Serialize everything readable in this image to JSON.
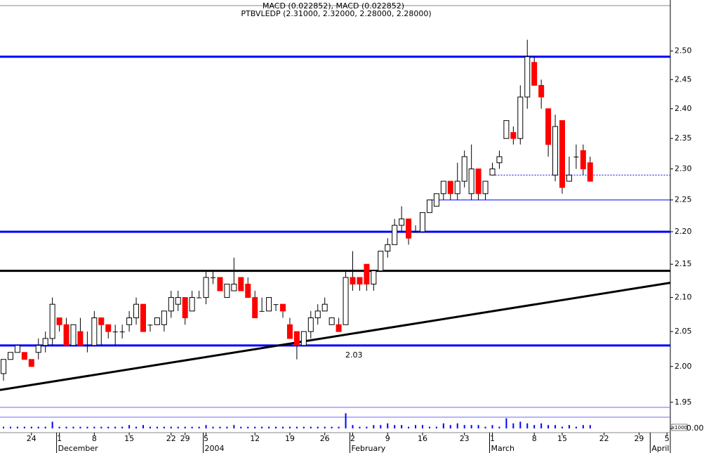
{
  "chart_data": {
    "type": "candlestick",
    "title": "PTBVLEDP (2.31000, 2.32000, 2.28000, 2.28000)",
    "subtitle": "MACD (0.022852), MACD (0.022852)",
    "log_scale": true,
    "ylim": [
      1.943,
      2.579
    ],
    "yticks": [
      1.95,
      {
        "value": 2.0,
        "label": "2.00"
      },
      2.05,
      {
        "value": 2.1,
        "label": "2.10"
      },
      2.15,
      {
        "value": 2.2,
        "label": "2.20"
      },
      2.25,
      {
        "value": 2.3,
        "label": "2.30"
      },
      2.35,
      {
        "value": 2.4,
        "label": "2.40"
      },
      2.45,
      {
        "value": 2.5,
        "label": "2.50"
      }
    ],
    "up_color": "#ffffff",
    "down_color": "#ff0000",
    "categories": [
      null,
      null,
      null,
      null,
      "24",
      null,
      null,
      null,
      "1",
      null,
      null,
      null,
      null,
      "8",
      null,
      null,
      null,
      null,
      "15",
      null,
      null,
      null,
      null,
      null,
      "22",
      null,
      "29",
      null,
      null,
      "5",
      null,
      null,
      null,
      null,
      null,
      null,
      "12",
      null,
      null,
      null,
      null,
      "19",
      null,
      null,
      null,
      null,
      "26",
      null,
      null,
      null,
      "2",
      null,
      null,
      null,
      null,
      "9",
      null,
      null,
      null,
      null,
      "16",
      null,
      null,
      null,
      null,
      null,
      "23",
      null,
      null,
      null,
      "1",
      null,
      null,
      null,
      null,
      null,
      "8",
      null,
      null,
      null,
      "15",
      null,
      null,
      null,
      null,
      null,
      "22",
      null,
      null,
      null,
      null,
      "29",
      null,
      null,
      null,
      "5"
    ],
    "months": [
      null,
      null,
      null,
      null,
      null,
      null,
      null,
      null,
      "December",
      null,
      null,
      null,
      null,
      null,
      null,
      null,
      null,
      null,
      null,
      null,
      null,
      null,
      null,
      null,
      null,
      null,
      null,
      null,
      null,
      "2004",
      null,
      null,
      null,
      null,
      null,
      null,
      null,
      null,
      null,
      null,
      null,
      null,
      null,
      null,
      null,
      null,
      null,
      null,
      null,
      null,
      "February",
      null,
      null,
      null,
      null,
      null,
      null,
      null,
      null,
      null,
      null,
      null,
      null,
      null,
      null,
      null,
      null,
      null,
      null,
      null,
      "March",
      null,
      null,
      null,
      null,
      null,
      null,
      null,
      null,
      null,
      null,
      null,
      null,
      null,
      null,
      null,
      null,
      null,
      null,
      null,
      null,
      null,
      null,
      "April",
      null,
      null
    ],
    "open": [
      1.99,
      2.01,
      2.02,
      2.02,
      2.01,
      2.02,
      2.03,
      2.04,
      2.07,
      2.06,
      2.03,
      2.05,
      2.03,
      2.03,
      2.07,
      2.06,
      2.05,
      2.05,
      2.06,
      2.07,
      2.09,
      2.06,
      2.06,
      2.06,
      2.08,
      2.09,
      2.1,
      2.08,
      2.1,
      2.1,
      2.13,
      2.13,
      2.1,
      2.11,
      2.13,
      2.12,
      2.1,
      2.08,
      2.08,
      2.09,
      2.09,
      2.06,
      2.05,
      2.03,
      2.05,
      2.07,
      2.08,
      2.06,
      2.06,
      2.06,
      2.13,
      2.13,
      2.15,
      2.12,
      2.14,
      2.17,
      2.18,
      2.21,
      2.22,
      2.2,
      2.2,
      2.23,
      2.24,
      2.26,
      2.28,
      2.26,
      2.28,
      2.26,
      2.3,
      2.26,
      2.29,
      2.31,
      2.35,
      2.36,
      2.35,
      2.42,
      2.48,
      2.44,
      2.4,
      2.29,
      2.38,
      2.28,
      2.32,
      2.33,
      2.31,
      null,
      null,
      null,
      null,
      null,
      null,
      null,
      null,
      null,
      null,
      null
    ],
    "high": [
      2.01,
      2.02,
      2.03,
      2.02,
      2.01,
      2.04,
      2.05,
      2.1,
      2.07,
      2.07,
      2.06,
      2.07,
      2.05,
      2.08,
      2.07,
      2.06,
      2.06,
      2.06,
      2.08,
      2.1,
      2.09,
      2.06,
      2.07,
      2.08,
      2.11,
      2.11,
      2.1,
      2.11,
      2.11,
      2.14,
      2.14,
      2.13,
      2.12,
      2.16,
      2.13,
      2.13,
      2.11,
      2.1,
      2.1,
      2.09,
      2.09,
      2.07,
      2.05,
      2.05,
      2.08,
      2.09,
      2.1,
      2.07,
      2.07,
      2.14,
      2.17,
      2.13,
      2.15,
      2.14,
      2.17,
      2.19,
      2.22,
      2.24,
      2.22,
      2.21,
      2.23,
      2.25,
      2.26,
      2.28,
      2.28,
      2.31,
      2.33,
      2.34,
      2.3,
      2.28,
      2.31,
      2.33,
      2.38,
      2.37,
      2.44,
      2.52,
      2.49,
      2.45,
      2.4,
      2.39,
      2.38,
      2.32,
      2.34,
      2.34,
      2.32,
      null,
      null,
      null,
      null,
      null,
      null,
      null,
      null,
      null,
      null,
      null
    ],
    "low": [
      1.98,
      2.01,
      2.02,
      2.01,
      2.0,
      2.01,
      2.02,
      2.03,
      2.05,
      2.03,
      2.03,
      2.03,
      2.02,
      2.03,
      2.03,
      2.04,
      2.03,
      2.04,
      2.05,
      2.06,
      2.05,
      2.05,
      2.06,
      2.05,
      2.07,
      2.08,
      2.06,
      2.08,
      2.1,
      2.09,
      2.12,
      2.11,
      2.1,
      2.11,
      2.11,
      2.1,
      2.07,
      2.08,
      2.08,
      2.08,
      2.07,
      2.04,
      2.01,
      2.03,
      2.04,
      2.06,
      2.08,
      2.06,
      2.05,
      2.06,
      2.11,
      2.11,
      2.11,
      2.11,
      2.14,
      2.16,
      2.18,
      2.2,
      2.18,
      2.2,
      2.2,
      2.23,
      2.24,
      2.25,
      2.25,
      2.25,
      2.27,
      2.25,
      2.25,
      2.25,
      2.29,
      2.3,
      2.35,
      2.34,
      2.34,
      2.4,
      2.44,
      2.4,
      2.32,
      2.28,
      2.26,
      2.28,
      2.3,
      2.29,
      2.28,
      null,
      null,
      null,
      null,
      null,
      null,
      null,
      null,
      null,
      null,
      null
    ],
    "close": [
      2.01,
      2.02,
      2.03,
      2.01,
      2.0,
      2.03,
      2.04,
      2.09,
      2.06,
      2.03,
      2.06,
      2.03,
      2.03,
      2.07,
      2.06,
      2.05,
      2.05,
      2.05,
      2.07,
      2.09,
      2.05,
      2.06,
      2.07,
      2.08,
      2.1,
      2.1,
      2.07,
      2.1,
      2.1,
      2.13,
      2.13,
      2.11,
      2.12,
      2.12,
      2.11,
      2.1,
      2.07,
      2.08,
      2.1,
      2.09,
      2.08,
      2.04,
      2.03,
      2.05,
      2.07,
      2.08,
      2.09,
      2.07,
      2.05,
      2.13,
      2.12,
      2.12,
      2.12,
      2.14,
      2.17,
      2.18,
      2.21,
      2.22,
      2.19,
      2.2,
      2.23,
      2.25,
      2.26,
      2.28,
      2.26,
      2.28,
      2.32,
      2.3,
      2.26,
      2.28,
      2.3,
      2.32,
      2.38,
      2.35,
      2.42,
      2.49,
      2.44,
      2.42,
      2.34,
      2.37,
      2.27,
      2.29,
      2.32,
      2.3,
      2.28,
      null,
      null,
      null,
      null,
      null,
      null,
      null,
      null,
      null,
      null,
      null
    ],
    "volume": [
      1,
      1,
      1,
      1,
      1,
      1,
      1,
      4,
      1,
      1,
      1,
      1,
      1,
      1,
      1,
      1,
      1,
      1,
      2,
      1,
      2,
      1,
      1,
      1,
      1,
      1,
      1,
      1,
      1,
      2,
      1,
      1,
      1,
      2,
      1,
      1,
      1,
      1,
      1,
      1,
      1,
      1,
      1,
      1,
      1,
      1,
      1,
      1,
      1,
      9,
      2,
      1,
      1,
      2,
      2,
      3,
      2,
      2,
      1,
      2,
      2,
      1,
      1,
      3,
      2,
      3,
      2,
      2,
      2,
      1,
      2,
      1,
      6,
      3,
      4,
      3,
      2,
      3,
      2,
      2,
      1,
      2,
      1,
      2,
      2,
      null,
      null,
      null,
      null,
      null,
      null,
      null,
      null,
      null,
      null,
      null
    ],
    "volume_color": "#0000ff",
    "volume_unit": "x1000",
    "volume_ylim": [
      0,
      10
    ],
    "volume_yticks": [
      {
        "value": 0,
        "label": "0.00"
      }
    ],
    "lines": [
      {
        "value": 2.49,
        "color": "#0000ff",
        "style": "thick"
      },
      {
        "value": 2.2,
        "color": "#0000ff",
        "style": "thick"
      },
      {
        "value": 2.03,
        "color": "#0000ff",
        "style": "thick",
        "labeled": true
      },
      {
        "value": 2.14,
        "color": "#000000",
        "style": "thick"
      },
      {
        "value": 2.25,
        "color": "#0000ff",
        "style": "thin",
        "from": 61
      },
      {
        "value": 2.29,
        "color": "#0000ff",
        "style": "dotted",
        "from": 70
      }
    ],
    "trendline": {
      "start": 1.967,
      "end": 2.122,
      "color": "#000000"
    }
  }
}
